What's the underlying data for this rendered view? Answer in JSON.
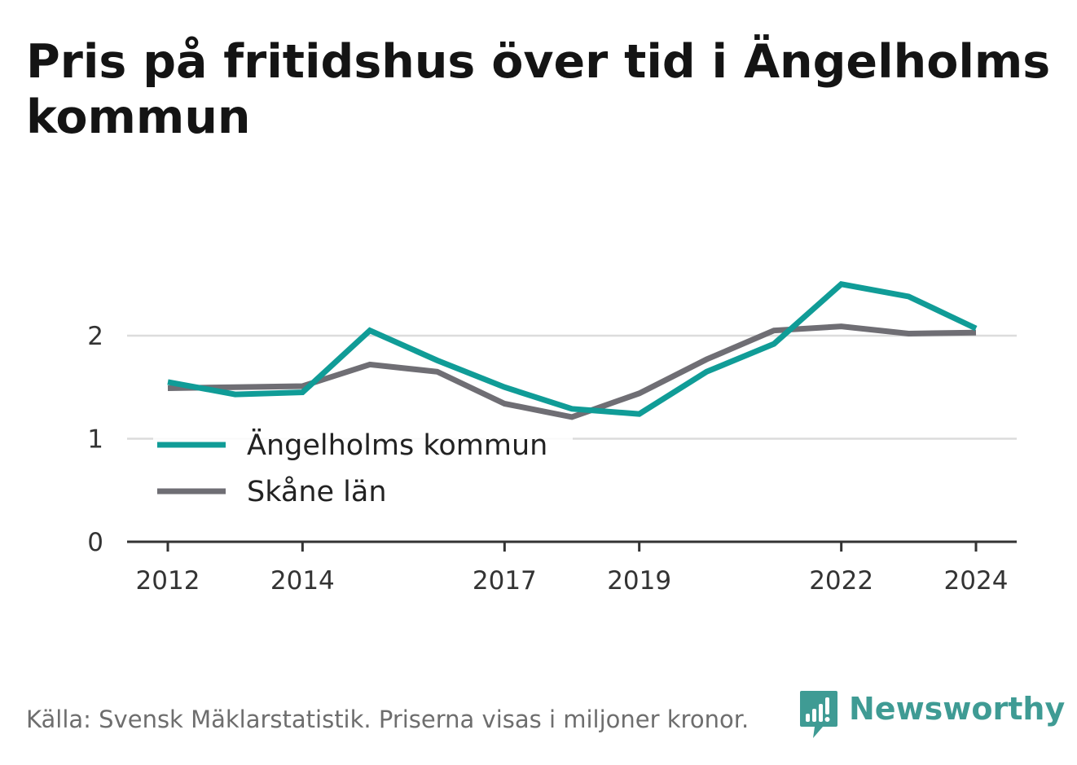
{
  "title": "Pris på fritidshus över tid i Ängelholms kommun",
  "source": "Källa: Svensk Mäklarstatistik. Priserna visas i miljoner kronor.",
  "brand": "Newsworthy",
  "colors": {
    "angelholm": "#109c97",
    "skane": "#6f6e74",
    "grid": "#dcdcdc",
    "axis": "#333333",
    "text": "#333333",
    "brand": "#3f9b94"
  },
  "chart_data": {
    "type": "line",
    "x": [
      2012,
      2013,
      2014,
      2015,
      2016,
      2017,
      2018,
      2019,
      2020,
      2021,
      2022,
      2023,
      2024
    ],
    "xticks": [
      "2012",
      "2014",
      "2017",
      "2019",
      "2022",
      "2024"
    ],
    "yticks": [
      "0",
      "1",
      "2"
    ],
    "ylim": [
      0,
      2.55
    ],
    "grid": true,
    "legend_position": "bottom-left",
    "series": [
      {
        "name": "Ängelholms kommun",
        "color": "#109c97",
        "values": [
          1.55,
          1.43,
          1.45,
          2.05,
          1.76,
          1.5,
          1.29,
          1.24,
          1.65,
          1.92,
          2.5,
          2.38,
          2.07
        ]
      },
      {
        "name": "Skåne län",
        "color": "#6f6e74",
        "values": [
          1.49,
          1.5,
          1.51,
          1.72,
          1.65,
          1.34,
          1.21,
          1.44,
          1.77,
          2.05,
          2.09,
          2.02,
          2.03
        ]
      }
    ]
  }
}
